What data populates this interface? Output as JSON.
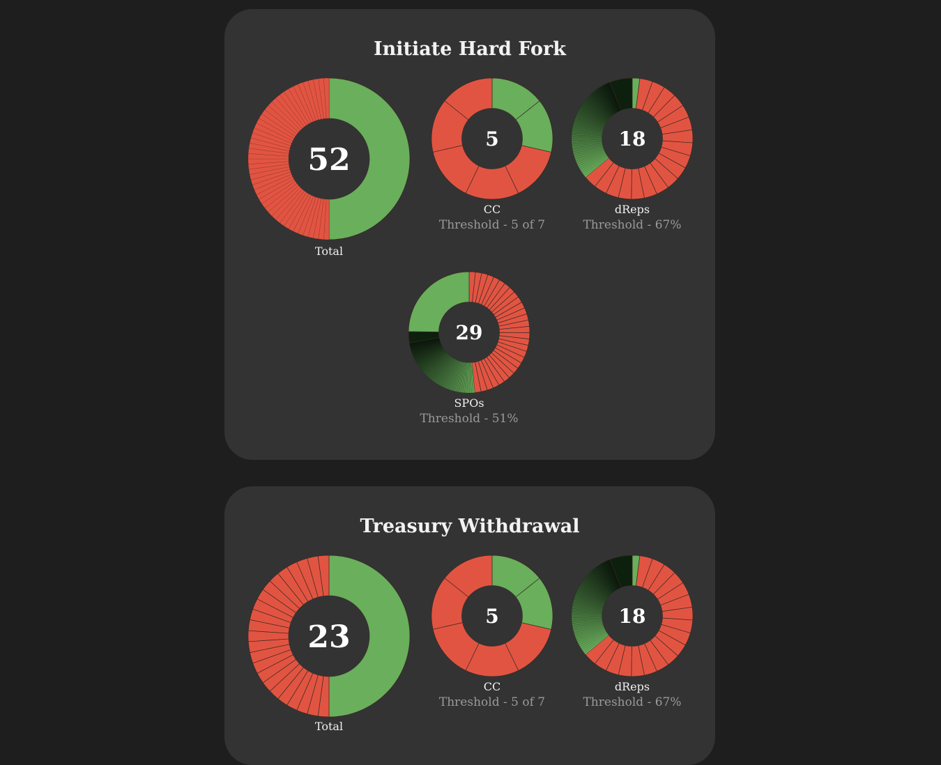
{
  "colors": {
    "yes": "#6aaf5c",
    "no": "#e25442",
    "page_bg": "#1e1e1e",
    "card_bg": "#333333",
    "divider": "#3a2a22"
  },
  "cards": [
    {
      "title": "Initiate Hard Fork",
      "charts": {
        "total": {
          "center": "52",
          "label": "Total",
          "threshold": ""
        },
        "cc": {
          "center": "5",
          "label": "CC",
          "threshold": "Threshold - 5 of 7"
        },
        "dreps": {
          "center": "18",
          "label": "dReps",
          "threshold": "Threshold - 67%"
        },
        "spos": {
          "center": "29",
          "label": "SPOs",
          "threshold": "Threshold - 51%"
        }
      }
    },
    {
      "title": "Treasury Withdrawal",
      "charts": {
        "total": {
          "center": "23",
          "label": "Total",
          "threshold": ""
        },
        "cc": {
          "center": "5",
          "label": "CC",
          "threshold": "Threshold - 5 of 7"
        },
        "dreps": {
          "center": "18",
          "label": "dReps",
          "threshold": "Threshold - 67%"
        }
      }
    }
  ],
  "chart_data": [
    {
      "type": "pie",
      "card": "Initiate Hard Fork",
      "name": "Total",
      "center_value": 52,
      "segments": [
        {
          "label": "yes",
          "fraction": 0.5,
          "parts": 1
        },
        {
          "label": "no",
          "fraction": 0.5,
          "parts": 48
        }
      ]
    },
    {
      "type": "pie",
      "card": "Initiate Hard Fork",
      "name": "CC",
      "center_value": 5,
      "segments": [
        {
          "label": "yes",
          "fraction": 0.286,
          "parts": 2
        },
        {
          "label": "no",
          "fraction": 0.714,
          "parts": 5
        }
      ]
    },
    {
      "type": "pie",
      "card": "Initiate Hard Fork",
      "name": "dReps",
      "center_value": 18,
      "segments": [
        {
          "label": "yes",
          "fraction": 0.02,
          "parts": 1
        },
        {
          "label": "no",
          "fraction": 0.62,
          "parts": 18
        },
        {
          "label": "yes-fine",
          "fraction": 0.3,
          "parts": 60
        },
        {
          "label": "dark",
          "fraction": 0.06,
          "parts": 1
        }
      ]
    },
    {
      "type": "pie",
      "card": "Initiate Hard Fork",
      "name": "SPOs",
      "center_value": 29,
      "segments": [
        {
          "label": "no",
          "fraction": 0.485,
          "parts": 29
        },
        {
          "label": "yes-fine",
          "fraction": 0.237,
          "parts": 80
        },
        {
          "label": "dark",
          "fraction": 0.03,
          "parts": 1
        },
        {
          "label": "yes",
          "fraction": 0.248,
          "parts": 1
        }
      ]
    },
    {
      "type": "pie",
      "card": "Treasury Withdrawal",
      "name": "Total",
      "center_value": 23,
      "segments": [
        {
          "label": "yes",
          "fraction": 0.5,
          "parts": 1
        },
        {
          "label": "no",
          "fraction": 0.5,
          "parts": 23
        }
      ]
    },
    {
      "type": "pie",
      "card": "Treasury Withdrawal",
      "name": "CC",
      "center_value": 5,
      "segments": [
        {
          "label": "yes",
          "fraction": 0.286,
          "parts": 2
        },
        {
          "label": "no",
          "fraction": 0.714,
          "parts": 5
        }
      ]
    },
    {
      "type": "pie",
      "card": "Treasury Withdrawal",
      "name": "dReps",
      "center_value": 18,
      "segments": [
        {
          "label": "yes",
          "fraction": 0.02,
          "parts": 1
        },
        {
          "label": "no",
          "fraction": 0.62,
          "parts": 18
        },
        {
          "label": "yes-fine",
          "fraction": 0.3,
          "parts": 60
        },
        {
          "label": "dark",
          "fraction": 0.06,
          "parts": 1
        }
      ]
    }
  ]
}
